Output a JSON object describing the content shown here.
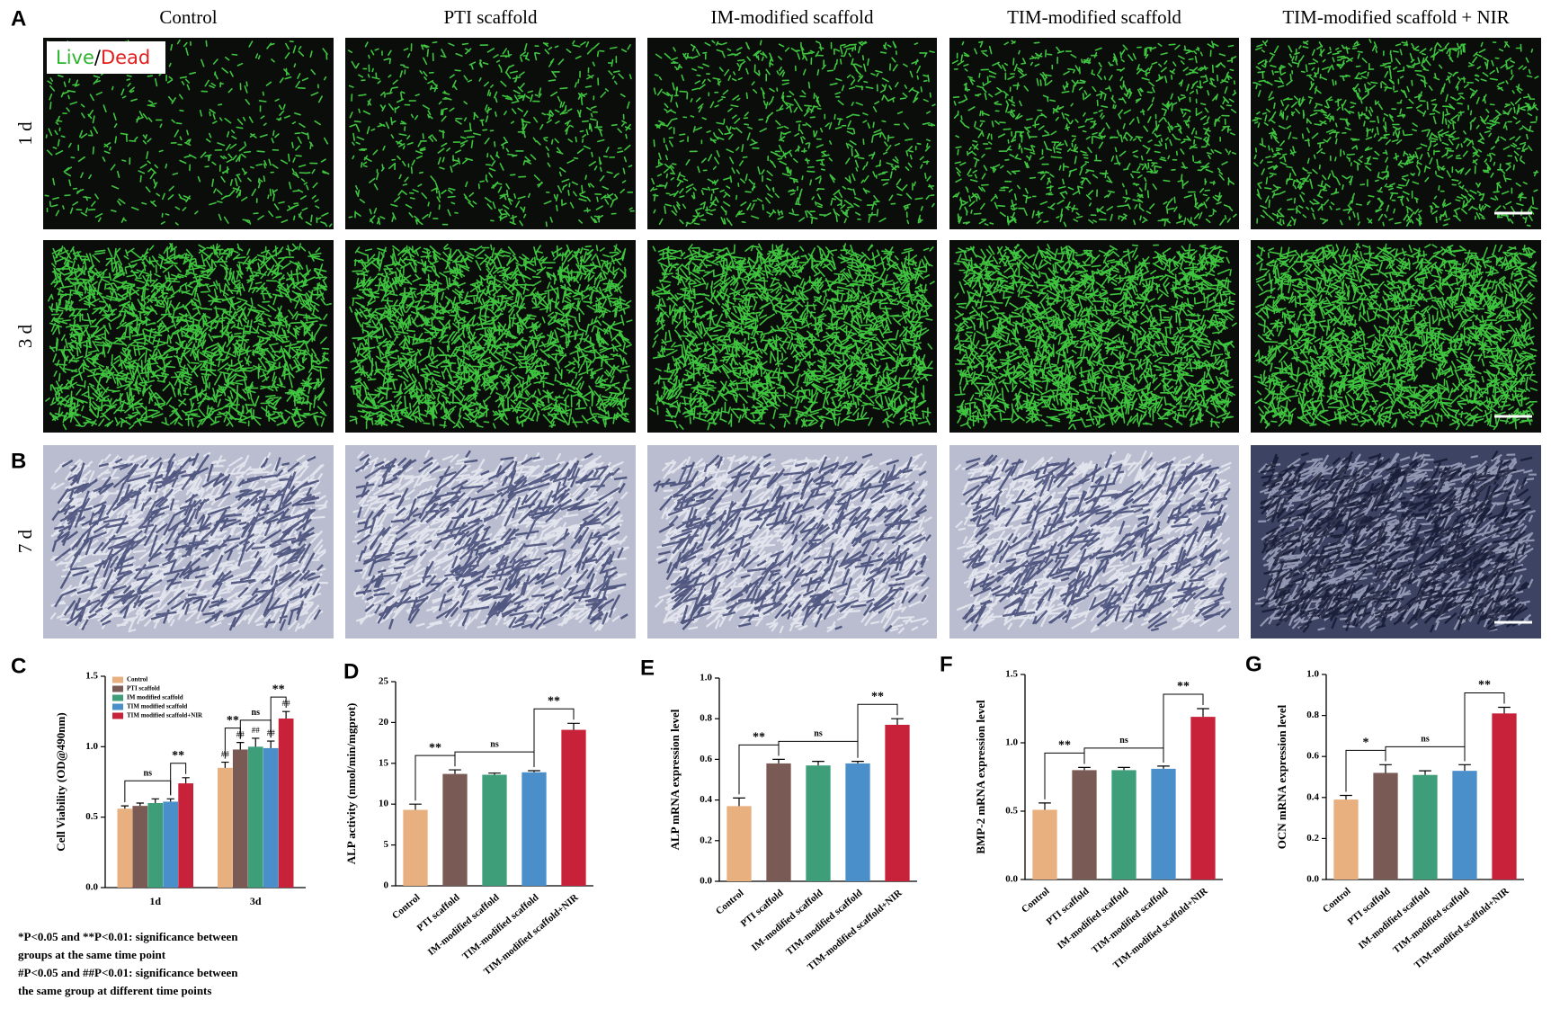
{
  "panel_a": {
    "label": "A",
    "columns": [
      "Control",
      "PTI scaffold",
      "IM-modified scaffold",
      "TIM-modified scaffold",
      "TIM-modified scaffold + NIR"
    ],
    "rows": [
      "1 d",
      "3 d"
    ],
    "legend": {
      "live": "Live",
      "separator": "/",
      "dead": "Dead"
    }
  },
  "panel_b": {
    "label": "B",
    "row": "7 d"
  },
  "chart_data": [
    {
      "type": "bar",
      "label": "C",
      "y_label": "Cell Viability (OD@490nm)",
      "categories": [
        "1d",
        "3d"
      ],
      "series": [
        {
          "name": "Control",
          "color": "#e8b07f",
          "values": [
            0.56,
            0.85
          ],
          "errors": [
            0.02,
            0.04
          ]
        },
        {
          "name": "PTI scaffold",
          "color": "#7a5a54",
          "values": [
            0.58,
            0.98
          ],
          "errors": [
            0.02,
            0.05
          ]
        },
        {
          "name": "IM modified scaffold",
          "color": "#3e9e7a",
          "values": [
            0.6,
            1.0
          ],
          "errors": [
            0.03,
            0.06
          ]
        },
        {
          "name": "TIM modified scaffold",
          "color": "#4a8fc9",
          "values": [
            0.61,
            0.99
          ],
          "errors": [
            0.02,
            0.05
          ]
        },
        {
          "name": "TIM modified scaffold+NIR",
          "color": "#c8213a",
          "values": [
            0.74,
            1.2
          ],
          "errors": [
            0.04,
            0.05
          ]
        }
      ],
      "ylim": [
        0,
        1.5
      ],
      "yticks": [
        {
          "value": 0,
          "label": "0.0"
        },
        0.5,
        {
          "value": 1,
          "label": "1.0"
        },
        1.5
      ],
      "annotations": [
        "ns",
        "**",
        "**",
        "ns",
        "**"
      ],
      "time_significance": "##"
    },
    {
      "type": "bar",
      "label": "D",
      "y_label": "ALP activity (nmol/min/mgprot)",
      "categories": [
        "Control",
        "PTI scaffold",
        "IM-modified scaffold",
        "TIM-modified scaffold",
        "TIM-modified scaffold+NIR"
      ],
      "colors": [
        "#e8b07f",
        "#7a5a54",
        "#3e9e7a",
        "#4a8fc9",
        "#c8213a"
      ],
      "values": [
        9.3,
        13.7,
        13.6,
        13.9,
        19.1
      ],
      "errors": [
        0.7,
        0.5,
        0.2,
        0.2,
        0.8
      ],
      "ylim": [
        0,
        25
      ],
      "yticks": [
        0,
        5,
        10,
        15,
        20,
        25
      ],
      "annotations": [
        "**",
        "ns",
        "**"
      ]
    },
    {
      "type": "bar",
      "label": "E",
      "y_label": "ALP mRNA expression level",
      "categories": [
        "Control",
        "PTI scaffold",
        "IM-modified scaffold",
        "TIM-modified scaffold",
        "TIM-modified scaffold+NIR"
      ],
      "colors": [
        "#e8b07f",
        "#7a5a54",
        "#3e9e7a",
        "#4a8fc9",
        "#c8213a"
      ],
      "values": [
        0.37,
        0.58,
        0.57,
        0.58,
        0.77
      ],
      "errors": [
        0.04,
        0.02,
        0.02,
        0.01,
        0.03
      ],
      "ylim": [
        0,
        1
      ],
      "yticks": [
        {
          "value": 0,
          "label": "0.0"
        },
        0.2,
        0.4,
        0.6,
        0.8,
        {
          "value": 1,
          "label": "1.0"
        }
      ],
      "annotations": [
        "**",
        "ns",
        "**"
      ]
    },
    {
      "type": "bar",
      "label": "F",
      "y_label": "BMP-2 mRNA expression level",
      "categories": [
        "Control",
        "PTI scaffold",
        "IM-modified scaffold",
        "TIM-modified scaffold",
        "TIM-modified scaffold+NIR"
      ],
      "colors": [
        "#e8b07f",
        "#7a5a54",
        "#3e9e7a",
        "#4a8fc9",
        "#c8213a"
      ],
      "values": [
        0.51,
        0.8,
        0.8,
        0.81,
        1.19
      ],
      "errors": [
        0.05,
        0.02,
        0.02,
        0.02,
        0.06
      ],
      "ylim": [
        0,
        1.5
      ],
      "yticks": [
        {
          "value": 0,
          "label": "0.0"
        },
        0.5,
        {
          "value": 1,
          "label": "1.0"
        },
        1.5
      ],
      "annotations": [
        "**",
        "ns",
        "**"
      ]
    },
    {
      "type": "bar",
      "label": "G",
      "y_label": "OCN mRNA expression level",
      "categories": [
        "Control",
        "PTI scaffold",
        "IM-modified scaffold",
        "TIM-modified scaffold",
        "TIM-modified scaffold+NIR"
      ],
      "colors": [
        "#e8b07f",
        "#7a5a54",
        "#3e9e7a",
        "#4a8fc9",
        "#c8213a"
      ],
      "values": [
        0.39,
        0.52,
        0.51,
        0.53,
        0.81
      ],
      "errors": [
        0.02,
        0.04,
        0.02,
        0.03,
        0.03
      ],
      "ylim": [
        0,
        1
      ],
      "yticks": [
        {
          "value": 0,
          "label": "0.0"
        },
        0.2,
        0.4,
        0.6,
        0.8,
        {
          "value": 1,
          "label": "1.0"
        }
      ],
      "annotations": [
        "*",
        "ns",
        "**"
      ]
    }
  ],
  "footnote": [
    "*P<0.05 and **P<0.01: significance between",
    "groups at the same time point",
    "#P<0.05 and ##P<0.01: significance between",
    "the same group at different time points"
  ]
}
